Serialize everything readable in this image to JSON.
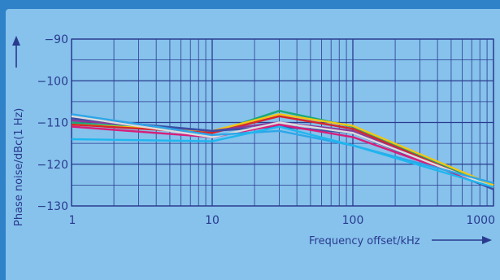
{
  "chart_data": {
    "type": "line",
    "title": "",
    "xlabel": "Frequency offset/kHz",
    "ylabel": "Phase noise/dBc(1 Hz)",
    "x_scale": "log",
    "xlim": [
      1,
      1000
    ],
    "ylim": [
      -130,
      -90
    ],
    "x_ticks": [
      1,
      10,
      100,
      1000
    ],
    "x_tick_labels": [
      "1",
      "10",
      "100",
      "1000"
    ],
    "y_ticks": [
      -90,
      -100,
      -110,
      -120,
      -130
    ],
    "y_tick_labels": [
      "−90",
      "−100",
      "−110",
      "−120",
      "−130"
    ],
    "grid": true,
    "legend": "none",
    "x": [
      1,
      10,
      30,
      100,
      1000
    ],
    "series": [
      {
        "color": "#19a87a",
        "values": [
          -110.0,
          -112.5,
          -107.2,
          -111.0,
          -125.5
        ]
      },
      {
        "color": "#f2c614",
        "values": [
          -110.5,
          -112.0,
          -108.0,
          -110.8,
          -125.0
        ]
      },
      {
        "color": "#d8262a",
        "values": [
          -110.5,
          -112.5,
          -108.5,
          -111.5,
          -125.8
        ]
      },
      {
        "color": "#8a3a9a",
        "values": [
          -109.5,
          -112.0,
          -110.0,
          -112.0,
          -126.0
        ]
      },
      {
        "color": "#3a4ea4",
        "values": [
          -109.0,
          -112.0,
          -111.0,
          -112.5,
          -126.0
        ]
      },
      {
        "color": "#d81e7a",
        "values": [
          -111.0,
          -113.5,
          -110.5,
          -113.5,
          -125.5
        ]
      },
      {
        "color": "#dcdcdc",
        "values": [
          -108.5,
          -113.5,
          -110.0,
          -112.5,
          -125.5
        ]
      },
      {
        "color": "#2ea6e8",
        "values": [
          -108.0,
          -113.0,
          -112.0,
          -115.5,
          -124.5
        ]
      },
      {
        "color": "#1fb6ee",
        "values": [
          -114.0,
          -114.5,
          -111.0,
          -115.5,
          -125.5
        ]
      }
    ]
  }
}
